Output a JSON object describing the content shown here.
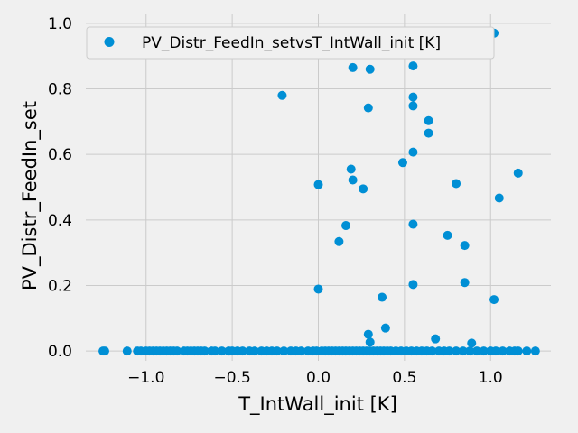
{
  "chart_data": {
    "type": "scatter",
    "xlabel": "T_IntWall_init [K]",
    "ylabel": "PV_Distr_FeedIn_set",
    "xlim": [
      -1.35,
      1.35
    ],
    "ylim": [
      -0.03,
      1.03
    ],
    "xticks": [
      -1.0,
      -0.5,
      0.0,
      0.5,
      1.0
    ],
    "xtick_labels": [
      "−1.0",
      "−0.5",
      "0.0",
      "0.5",
      "1.0"
    ],
    "yticks": [
      0.0,
      0.2,
      0.4,
      0.6,
      0.8,
      1.0
    ],
    "ytick_labels": [
      "0.0",
      "0.2",
      "0.4",
      "0.6",
      "0.8",
      "1.0"
    ],
    "grid": true,
    "legend_position": "top",
    "colors": {
      "marker": "#008fd5",
      "background": "#f0f0f0",
      "grid": "#cbcbcb"
    },
    "series": [
      {
        "name": "PV_Distr_FeedIn_setvsT_IntWall_init [K]",
        "points": [
          [
            -0.21,
            0.78
          ],
          [
            0.2,
            0.865
          ],
          [
            0.3,
            0.86
          ],
          [
            0.55,
            0.87
          ],
          [
            1.02,
            0.97
          ],
          [
            0.55,
            0.775
          ],
          [
            0.55,
            0.748
          ],
          [
            0.29,
            0.742
          ],
          [
            0.64,
            0.703
          ],
          [
            0.64,
            0.665
          ],
          [
            0.55,
            0.607
          ],
          [
            0.49,
            0.575
          ],
          [
            0.19,
            0.555
          ],
          [
            1.16,
            0.543
          ],
          [
            0.2,
            0.522
          ],
          [
            0.8,
            0.511
          ],
          [
            0.0,
            0.508
          ],
          [
            0.26,
            0.495
          ],
          [
            1.05,
            0.467
          ],
          [
            0.16,
            0.383
          ],
          [
            0.55,
            0.387
          ],
          [
            0.75,
            0.353
          ],
          [
            0.12,
            0.334
          ],
          [
            0.85,
            0.322
          ],
          [
            0.85,
            0.209
          ],
          [
            0.55,
            0.203
          ],
          [
            0.0,
            0.189
          ],
          [
            0.37,
            0.164
          ],
          [
            1.02,
            0.157
          ],
          [
            0.39,
            0.07
          ],
          [
            0.29,
            0.051
          ],
          [
            0.68,
            0.037
          ],
          [
            0.3,
            0.027
          ],
          [
            0.89,
            0.024
          ],
          [
            -1.25,
            0.0
          ],
          [
            -1.24,
            0.0
          ],
          [
            -1.11,
            0.0
          ],
          [
            -1.05,
            0.0
          ],
          [
            -1.03,
            0.0
          ],
          [
            -1.0,
            0.0
          ],
          [
            -0.98,
            0.0
          ],
          [
            -0.96,
            0.0
          ],
          [
            -0.94,
            0.0
          ],
          [
            -0.92,
            0.0
          ],
          [
            -0.9,
            0.0
          ],
          [
            -0.88,
            0.0
          ],
          [
            -0.86,
            0.0
          ],
          [
            -0.84,
            0.0
          ],
          [
            -0.82,
            0.0
          ],
          [
            -0.78,
            0.0
          ],
          [
            -0.76,
            0.0
          ],
          [
            -0.74,
            0.0
          ],
          [
            -0.72,
            0.0
          ],
          [
            -0.7,
            0.0
          ],
          [
            -0.68,
            0.0
          ],
          [
            -0.66,
            0.0
          ],
          [
            -0.62,
            0.0
          ],
          [
            -0.6,
            0.0
          ],
          [
            -0.56,
            0.0
          ],
          [
            -0.52,
            0.0
          ],
          [
            -0.5,
            0.0
          ],
          [
            -0.47,
            0.0
          ],
          [
            -0.44,
            0.0
          ],
          [
            -0.4,
            0.0
          ],
          [
            -0.37,
            0.0
          ],
          [
            -0.33,
            0.0
          ],
          [
            -0.3,
            0.0
          ],
          [
            -0.27,
            0.0
          ],
          [
            -0.24,
            0.0
          ],
          [
            -0.2,
            0.0
          ],
          [
            -0.16,
            0.0
          ],
          [
            -0.13,
            0.0
          ],
          [
            -0.1,
            0.0
          ],
          [
            -0.06,
            0.0
          ],
          [
            -0.03,
            0.0
          ],
          [
            -0.01,
            0.0
          ],
          [
            0.02,
            0.0
          ],
          [
            0.04,
            0.0
          ],
          [
            0.06,
            0.0
          ],
          [
            0.08,
            0.0
          ],
          [
            0.1,
            0.0
          ],
          [
            0.12,
            0.0
          ],
          [
            0.14,
            0.0
          ],
          [
            0.16,
            0.0
          ],
          [
            0.18,
            0.0
          ],
          [
            0.2,
            0.0
          ],
          [
            0.22,
            0.0
          ],
          [
            0.24,
            0.0
          ],
          [
            0.26,
            0.0
          ],
          [
            0.28,
            0.0
          ],
          [
            0.3,
            0.0
          ],
          [
            0.32,
            0.0
          ],
          [
            0.34,
            0.0
          ],
          [
            0.36,
            0.0
          ],
          [
            0.38,
            0.0
          ],
          [
            0.4,
            0.0
          ],
          [
            0.42,
            0.0
          ],
          [
            0.45,
            0.0
          ],
          [
            0.48,
            0.0
          ],
          [
            0.51,
            0.0
          ],
          [
            0.54,
            0.0
          ],
          [
            0.57,
            0.0
          ],
          [
            0.6,
            0.0
          ],
          [
            0.63,
            0.0
          ],
          [
            0.66,
            0.0
          ],
          [
            0.7,
            0.0
          ],
          [
            0.73,
            0.0
          ],
          [
            0.76,
            0.0
          ],
          [
            0.8,
            0.0
          ],
          [
            0.84,
            0.0
          ],
          [
            0.88,
            0.0
          ],
          [
            0.92,
            0.0
          ],
          [
            0.96,
            0.0
          ],
          [
            1.0,
            0.0
          ],
          [
            1.03,
            0.0
          ],
          [
            1.07,
            0.0
          ],
          [
            1.11,
            0.0
          ],
          [
            1.14,
            0.0
          ],
          [
            1.16,
            0.0
          ],
          [
            1.21,
            0.0
          ],
          [
            1.26,
            0.0
          ]
        ]
      }
    ]
  }
}
